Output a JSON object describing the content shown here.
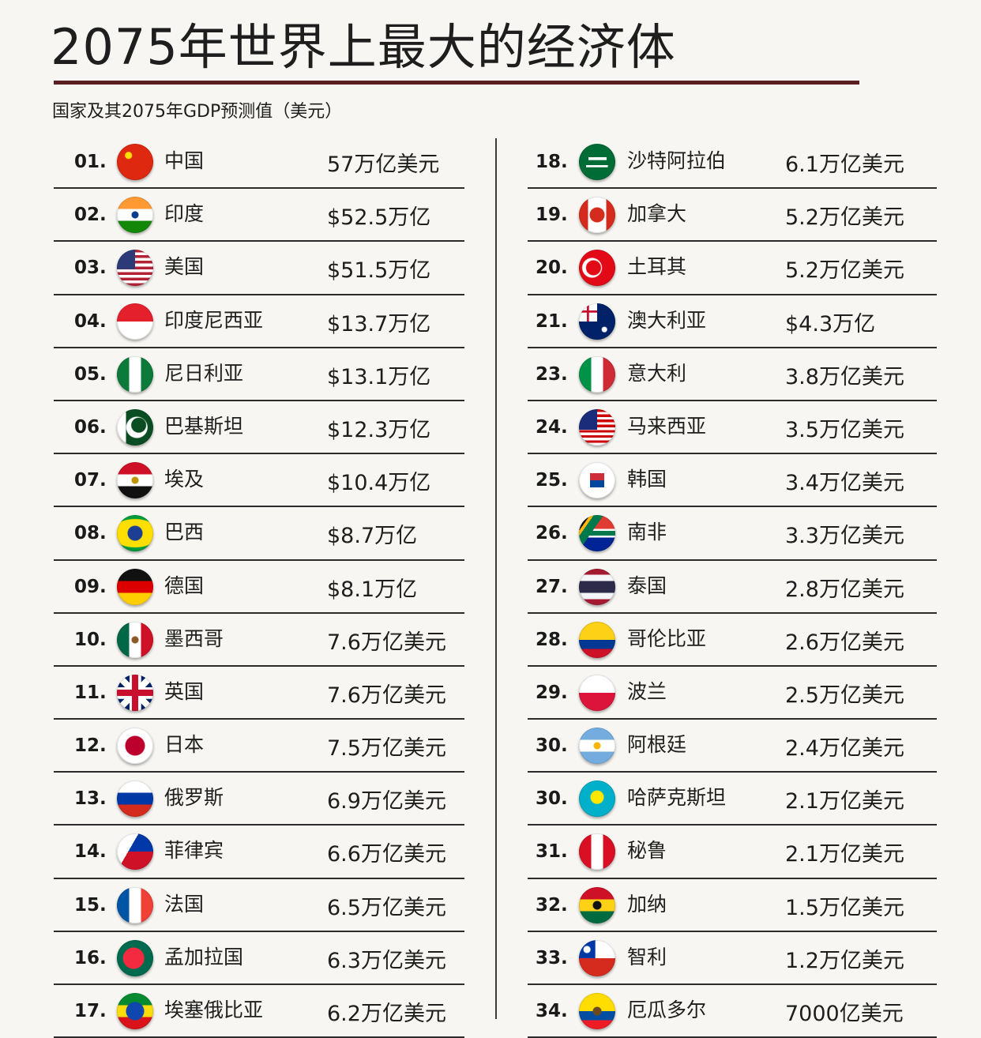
{
  "header": {
    "title": "2075年世界上最大的经济体",
    "subtitle": "国家及其2075年GDP预测值（美元）"
  },
  "chart_data": {
    "type": "table",
    "title": "2075年世界上最大的经济体",
    "subtitle": "国家及其2075年GDP预测值（美元）",
    "columns": [
      "rank",
      "country",
      "gdp"
    ],
    "rows": [
      {
        "rank": "01.",
        "country": "中国",
        "gdp": "57万亿美元",
        "value_trillion_usd": 57,
        "flag": "china-flag-icon"
      },
      {
        "rank": "02.",
        "country": "印度",
        "gdp": "$52.5万亿",
        "value_trillion_usd": 52.5,
        "flag": "india-flag-icon"
      },
      {
        "rank": "03.",
        "country": "美国",
        "gdp": "$51.5万亿",
        "value_trillion_usd": 51.5,
        "flag": "usa-flag-icon"
      },
      {
        "rank": "04.",
        "country": "印度尼西亚",
        "gdp": "$13.7万亿",
        "value_trillion_usd": 13.7,
        "flag": "indonesia-flag-icon"
      },
      {
        "rank": "05.",
        "country": "尼日利亚",
        "gdp": "$13.1万亿",
        "value_trillion_usd": 13.1,
        "flag": "nigeria-flag-icon"
      },
      {
        "rank": "06.",
        "country": "巴基斯坦",
        "gdp": "$12.3万亿",
        "value_trillion_usd": 12.3,
        "flag": "pakistan-flag-icon"
      },
      {
        "rank": "07.",
        "country": "埃及",
        "gdp": "$10.4万亿",
        "value_trillion_usd": 10.4,
        "flag": "egypt-flag-icon"
      },
      {
        "rank": "08.",
        "country": "巴西",
        "gdp": "$8.7万亿",
        "value_trillion_usd": 8.7,
        "flag": "brazil-flag-icon"
      },
      {
        "rank": "09.",
        "country": "德国",
        "gdp": "$8.1万亿",
        "value_trillion_usd": 8.1,
        "flag": "germany-flag-icon"
      },
      {
        "rank": "10.",
        "country": "墨西哥",
        "gdp": "7.6万亿美元",
        "value_trillion_usd": 7.6,
        "flag": "mexico-flag-icon"
      },
      {
        "rank": "11.",
        "country": "英国",
        "gdp": "7.6万亿美元",
        "value_trillion_usd": 7.6,
        "flag": "uk-flag-icon"
      },
      {
        "rank": "12.",
        "country": "日本",
        "gdp": "7.5万亿美元",
        "value_trillion_usd": 7.5,
        "flag": "japan-flag-icon"
      },
      {
        "rank": "13.",
        "country": "俄罗斯",
        "gdp": "6.9万亿美元",
        "value_trillion_usd": 6.9,
        "flag": "russia-flag-icon"
      },
      {
        "rank": "14.",
        "country": "菲律宾",
        "gdp": "6.6万亿美元",
        "value_trillion_usd": 6.6,
        "flag": "philippines-flag-icon"
      },
      {
        "rank": "15.",
        "country": "法国",
        "gdp": "6.5万亿美元",
        "value_trillion_usd": 6.5,
        "flag": "france-flag-icon"
      },
      {
        "rank": "16.",
        "country": "孟加拉国",
        "gdp": "6.3万亿美元",
        "value_trillion_usd": 6.3,
        "flag": "bangladesh-flag-icon"
      },
      {
        "rank": "17.",
        "country": "埃塞俄比亚",
        "gdp": "6.2万亿美元",
        "value_trillion_usd": 6.2,
        "flag": "ethiopia-flag-icon"
      },
      {
        "rank": "18.",
        "country": "沙特阿拉伯",
        "gdp": "6.1万亿美元",
        "value_trillion_usd": 6.1,
        "flag": "saudi-arabia-flag-icon"
      },
      {
        "rank": "19.",
        "country": "加拿大",
        "gdp": "5.2万亿美元",
        "value_trillion_usd": 5.2,
        "flag": "canada-flag-icon"
      },
      {
        "rank": "20.",
        "country": "土耳其",
        "gdp": "5.2万亿美元",
        "value_trillion_usd": 5.2,
        "flag": "turkey-flag-icon"
      },
      {
        "rank": "21.",
        "country": "澳大利亚",
        "gdp": "$4.3万亿",
        "value_trillion_usd": 4.3,
        "flag": "australia-flag-icon"
      },
      {
        "rank": "23.",
        "country": "意大利",
        "gdp": "3.8万亿美元",
        "value_trillion_usd": 3.8,
        "flag": "italy-flag-icon"
      },
      {
        "rank": "24.",
        "country": "马来西亚",
        "gdp": "3.5万亿美元",
        "value_trillion_usd": 3.5,
        "flag": "malaysia-flag-icon"
      },
      {
        "rank": "25.",
        "country": "韩国",
        "gdp": "3.4万亿美元",
        "value_trillion_usd": 3.4,
        "flag": "south-korea-flag-icon"
      },
      {
        "rank": "26.",
        "country": "南非",
        "gdp": "3.3万亿美元",
        "value_trillion_usd": 3.3,
        "flag": "south-africa-flag-icon"
      },
      {
        "rank": "27.",
        "country": "泰国",
        "gdp": "2.8万亿美元",
        "value_trillion_usd": 2.8,
        "flag": "thailand-flag-icon"
      },
      {
        "rank": "28.",
        "country": "哥伦比亚",
        "gdp": "2.6万亿美元",
        "value_trillion_usd": 2.6,
        "flag": "colombia-flag-icon"
      },
      {
        "rank": "29.",
        "country": "波兰",
        "gdp": "2.5万亿美元",
        "value_trillion_usd": 2.5,
        "flag": "poland-flag-icon"
      },
      {
        "rank": "30.",
        "country": "阿根廷",
        "gdp": "2.4万亿美元",
        "value_trillion_usd": 2.4,
        "flag": "argentina-flag-icon"
      },
      {
        "rank": "30.",
        "country": "哈萨克斯坦",
        "gdp": "2.1万亿美元",
        "value_trillion_usd": 2.1,
        "flag": "kazakhstan-flag-icon"
      },
      {
        "rank": "31.",
        "country": "秘鲁",
        "gdp": "2.1万亿美元",
        "value_trillion_usd": 2.1,
        "flag": "peru-flag-icon"
      },
      {
        "rank": "32.",
        "country": "加纳",
        "gdp": "1.5万亿美元",
        "value_trillion_usd": 1.5,
        "flag": "ghana-flag-icon"
      },
      {
        "rank": "33.",
        "country": "智利",
        "gdp": "1.2万亿美元",
        "value_trillion_usd": 1.2,
        "flag": "chile-flag-icon"
      },
      {
        "rank": "34.",
        "country": "厄瓜多尔",
        "gdp": "7000亿美元",
        "value_trillion_usd": 0.7,
        "flag": "ecuador-flag-icon"
      }
    ]
  },
  "colors": {
    "background": "#f7f6f2",
    "title_rule": "#5a1f22",
    "text": "#1e1e1e"
  }
}
